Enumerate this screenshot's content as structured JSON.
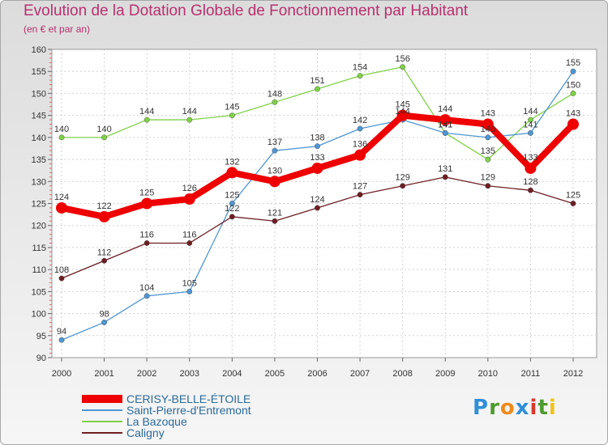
{
  "chart_data": {
    "type": "line",
    "title": "Evolution de la Dotation Globale de Fonctionnement par Habitant",
    "subtitle": "(en € et par an)",
    "xlabel": "",
    "ylabel": "",
    "ylim": [
      90,
      160
    ],
    "yticks": [
      90,
      95,
      100,
      105,
      110,
      115,
      120,
      125,
      130,
      135,
      140,
      145,
      150,
      155,
      160
    ],
    "categories": [
      "2000",
      "2001",
      "2002",
      "2003",
      "2004",
      "2005",
      "2006",
      "2007",
      "2008",
      "2009",
      "2010",
      "2011",
      "2012"
    ],
    "grid": true,
    "legend_position": "bottom-left",
    "series": [
      {
        "name": "La Bazoque",
        "color": "#7fd149",
        "values": [
          140,
          140,
          144,
          144,
          145,
          148,
          151,
          154,
          156,
          141,
          135,
          144,
          150
        ]
      },
      {
        "name": "Saint-Pierre-d'Entremont",
        "color": "#4f96d3",
        "values": [
          94,
          98,
          104,
          105,
          125,
          137,
          138,
          142,
          144,
          141,
          140,
          141,
          155
        ]
      },
      {
        "name": "Caligny",
        "color": "#6e1f24",
        "values": [
          108,
          112,
          116,
          116,
          122,
          121,
          124,
          127,
          129,
          131,
          129,
          128,
          125
        ]
      },
      {
        "name": "CERISY-BELLE-ÉTOILE",
        "color": "#ee0000",
        "values": [
          124,
          122,
          125,
          126,
          132,
          130,
          133,
          136,
          145,
          144,
          143,
          133,
          143
        ]
      }
    ],
    "legend_order": [
      "CERISY-BELLE-ÉTOILE",
      "Saint-Pierre-d'Entremont",
      "La Bazoque",
      "Caligny"
    ]
  },
  "logo": {
    "letters": [
      "P",
      "r",
      "o",
      "x",
      "i",
      "t",
      "i"
    ],
    "colors": [
      "#2f8fd8",
      "#4e9b2e",
      "#f08a1a",
      "#2f8fd8",
      "#d83a2e",
      "#4e9b2e",
      "#f0c41a"
    ]
  }
}
